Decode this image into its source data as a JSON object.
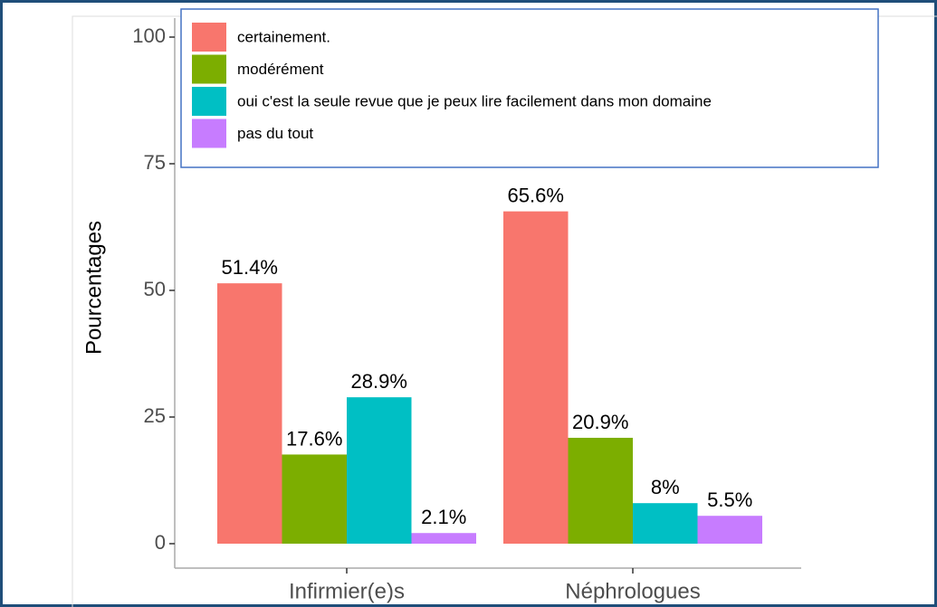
{
  "chart_data": {
    "type": "bar",
    "ylabel": "Pourcentages",
    "categories": [
      "Infirmier(e)s",
      "Néphrologues"
    ],
    "series": [
      {
        "name": "certainement.",
        "color": "#F8766D",
        "values": [
          51.4,
          65.6
        ],
        "value_labels": [
          "51.4%",
          "65.6%"
        ]
      },
      {
        "name": "modérément",
        "color": "#7CAE00",
        "values": [
          17.6,
          20.9
        ],
        "value_labels": [
          "17.6%",
          "20.9%"
        ]
      },
      {
        "name": "oui c'est la seule revue que je peux lire facilement dans mon domaine",
        "color": "#00BFC4",
        "values": [
          28.9,
          8
        ],
        "value_labels": [
          "28.9%",
          "8%"
        ]
      },
      {
        "name": "pas du tout",
        "color": "#C77CFF",
        "values": [
          2.1,
          5.5
        ],
        "value_labels": [
          "2.1%",
          "5.5%"
        ]
      }
    ],
    "ylim": [
      0,
      100
    ],
    "yticks": [
      0,
      25,
      50,
      75,
      100
    ],
    "grid": false,
    "legend_position": "top"
  }
}
